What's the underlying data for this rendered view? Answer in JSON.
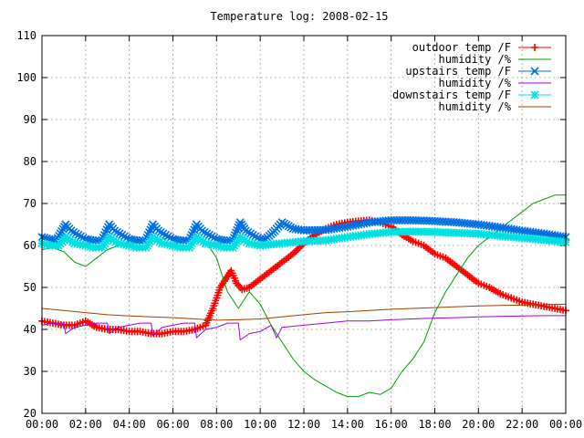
{
  "chart_data": {
    "type": "line",
    "title": "Temperature log: 2008-02-15",
    "xlabel": "",
    "ylabel": "",
    "ylim": [
      20,
      110
    ],
    "xlim": [
      "00:00",
      "24:00"
    ],
    "x_ticks": [
      "00:00",
      "02:00",
      "04:00",
      "06:00",
      "08:00",
      "10:00",
      "12:00",
      "14:00",
      "16:00",
      "18:00",
      "20:00",
      "22:00",
      "00:00"
    ],
    "y_ticks": [
      "20",
      "30",
      "40",
      "50",
      "60",
      "70",
      "80",
      "90",
      "100",
      "110"
    ],
    "grid": true,
    "legend_position": "top-right",
    "series": [
      {
        "name": "outdoor temp /F",
        "color": "#ff0000",
        "marker": "plus",
        "x": [
          "00:00",
          "00:30",
          "01:00",
          "01:30",
          "02:00",
          "02:30",
          "03:00",
          "03:30",
          "04:00",
          "04:30",
          "05:00",
          "05:30",
          "06:00",
          "06:30",
          "07:00",
          "07:30",
          "07:50",
          "08:10",
          "08:25",
          "08:40",
          "08:55",
          "09:10",
          "09:30",
          "10:00",
          "10:30",
          "11:00",
          "11:30",
          "12:00",
          "12:30",
          "13:00",
          "13:30",
          "14:00",
          "14:30",
          "15:00",
          "15:30",
          "16:00",
          "16:30",
          "17:00",
          "17:30",
          "18:00",
          "18:30",
          "19:00",
          "19:30",
          "20:00",
          "20:30",
          "21:00",
          "21:30",
          "22:00",
          "22:30",
          "23:00",
          "23:30",
          "24:00"
        ],
        "values": [
          42,
          41.5,
          41,
          41,
          42,
          40.5,
          40,
          40,
          39.5,
          39.5,
          39,
          39,
          39.5,
          39.5,
          40,
          41,
          45,
          50,
          52,
          54,
          51,
          49.5,
          50,
          52,
          54,
          56,
          58,
          60.5,
          62.5,
          64,
          65,
          65.5,
          65.8,
          66,
          65.5,
          64.5,
          62.5,
          61,
          60,
          58,
          57,
          55,
          53,
          51,
          50,
          48.5,
          47.5,
          46.5,
          46,
          45.5,
          45,
          44.5
        ]
      },
      {
        "name": "humidity /%",
        "color": "#00a000",
        "marker": "none",
        "x": [
          "00:00",
          "00:30",
          "01:00",
          "01:30",
          "02:00",
          "02:30",
          "03:00",
          "03:30",
          "04:00",
          "04:30",
          "05:00",
          "05:30",
          "06:00",
          "06:30",
          "07:00",
          "07:30",
          "08:00",
          "08:30",
          "09:00",
          "09:30",
          "10:00",
          "10:30",
          "11:00",
          "11:30",
          "12:00",
          "12:30",
          "13:00",
          "13:30",
          "14:00",
          "14:30",
          "15:00",
          "15:30",
          "16:00",
          "16:30",
          "17:00",
          "17:30",
          "18:00",
          "18:30",
          "19:00",
          "19:30",
          "20:00",
          "20:30",
          "21:00",
          "21:30",
          "22:00",
          "22:30",
          "23:00",
          "23:30",
          "24:00"
        ],
        "values": [
          59,
          59.5,
          58.5,
          56,
          55,
          57,
          59,
          60,
          61,
          60.5,
          61,
          61.5,
          62,
          61.5,
          62,
          61,
          57,
          49,
          45,
          49,
          46,
          41,
          37,
          33,
          30,
          28,
          26.5,
          25,
          24,
          24,
          25,
          24.5,
          26,
          30,
          33,
          37,
          44,
          49,
          53,
          57,
          60,
          62,
          64,
          66,
          68,
          70,
          71,
          72,
          72
        ]
      },
      {
        "name": "upstairs temp /F",
        "color": "#0070e0",
        "marker": "x",
        "x": [
          "00:00",
          "00:20",
          "00:40",
          "01:05",
          "01:20",
          "02:00",
          "02:20",
          "02:45",
          "03:05",
          "03:20",
          "04:00",
          "04:20",
          "04:45",
          "05:05",
          "05:20",
          "06:00",
          "06:20",
          "06:45",
          "07:05",
          "07:20",
          "08:00",
          "08:20",
          "08:45",
          "09:05",
          "09:20",
          "10:00",
          "10:15",
          "10:40",
          "11:00",
          "11:30",
          "12:00",
          "13:00",
          "14:00",
          "15:00",
          "16:00",
          "17:00",
          "18:00",
          "19:00",
          "20:00",
          "21:00",
          "22:00",
          "23:00",
          "24:00"
        ],
        "values": [
          62,
          61.5,
          61.2,
          65,
          63.5,
          61.5,
          61.2,
          61.2,
          65,
          63.5,
          61.5,
          61.2,
          61.2,
          65,
          63.5,
          61.5,
          61.2,
          61.2,
          65,
          63.5,
          61.5,
          61.2,
          61.2,
          65.5,
          63.5,
          61.5,
          61.5,
          63.5,
          65.5,
          64,
          63.6,
          63.7,
          64.5,
          65.5,
          66,
          66,
          65.8,
          65.5,
          65,
          64.3,
          63.5,
          62.8,
          62
        ]
      },
      {
        "name": "humidity /%",
        "color": "#a000e0",
        "marker": "none",
        "x": [
          "00:00",
          "00:30",
          "00:50",
          "01:00",
          "01:05",
          "01:30",
          "02:00",
          "02:30",
          "02:50",
          "03:00",
          "03:05",
          "03:30",
          "04:00",
          "04:30",
          "04:50",
          "05:00",
          "05:05",
          "05:30",
          "06:00",
          "06:30",
          "06:50",
          "07:00",
          "07:05",
          "07:30",
          "08:00",
          "08:30",
          "08:50",
          "09:00",
          "09:05",
          "09:30",
          "10:00",
          "10:30",
          "10:45",
          "11:00",
          "12:00",
          "13:00",
          "14:00",
          "15:00",
          "16:00",
          "17:00",
          "18:00",
          "19:00",
          "20:00",
          "21:00",
          "22:00",
          "23:00",
          "24:00"
        ],
        "values": [
          41,
          41.5,
          41.5,
          41.5,
          39,
          40.5,
          41,
          41.5,
          41.5,
          41.5,
          39,
          40.5,
          41,
          41.5,
          41.5,
          41.5,
          38.5,
          40.5,
          41,
          41.5,
          41.5,
          41.5,
          38,
          40,
          40.5,
          41.5,
          41.5,
          41.5,
          37.5,
          39,
          39.5,
          41,
          38,
          40.5,
          41,
          41.5,
          42,
          42,
          42.3,
          42.5,
          42.7,
          42.8,
          43,
          43.1,
          43.2,
          43.3,
          43.3
        ]
      },
      {
        "name": "downstairs temp /F",
        "color": "#00e0e0",
        "marker": "star",
        "x": [
          "00:00",
          "00:20",
          "00:45",
          "01:05",
          "01:30",
          "02:00",
          "02:20",
          "02:45",
          "03:05",
          "03:30",
          "04:00",
          "04:20",
          "04:45",
          "05:05",
          "05:30",
          "06:00",
          "06:20",
          "06:45",
          "07:05",
          "07:30",
          "08:00",
          "08:20",
          "08:45",
          "09:05",
          "09:30",
          "10:00",
          "11:00",
          "12:00",
          "13:00",
          "14:00",
          "15:00",
          "16:00",
          "17:00",
          "18:00",
          "19:00",
          "20:00",
          "21:00",
          "22:00",
          "23:00",
          "24:00"
        ],
        "values": [
          60.5,
          60,
          60,
          62,
          60.5,
          60,
          59.5,
          59.5,
          62,
          60.5,
          60,
          59.5,
          59.5,
          62,
          60.5,
          60,
          59.5,
          59.5,
          62,
          60.5,
          60,
          59.5,
          59.5,
          62,
          60.5,
          60,
          60.5,
          61,
          61.2,
          62,
          62.7,
          63.2,
          63.3,
          63.2,
          63,
          62.8,
          62.3,
          61.8,
          61.3,
          60.8
        ]
      },
      {
        "name": "humidity /%",
        "color": "#a04000",
        "marker": "none",
        "x": [
          "00:00",
          "01:00",
          "02:00",
          "03:00",
          "04:00",
          "05:00",
          "06:00",
          "07:00",
          "08:00",
          "09:00",
          "10:00",
          "11:00",
          "12:00",
          "13:00",
          "14:00",
          "15:00",
          "16:00",
          "17:00",
          "18:00",
          "19:00",
          "20:00",
          "21:00",
          "22:00",
          "23:00",
          "24:00"
        ],
        "values": [
          45,
          44.5,
          44,
          43.5,
          43.2,
          43,
          42.8,
          42.5,
          42.2,
          42.3,
          42.5,
          43,
          43.5,
          44,
          44.2,
          44.5,
          44.8,
          45,
          45.2,
          45.4,
          45.6,
          45.7,
          45.8,
          45.9,
          46
        ]
      }
    ]
  }
}
